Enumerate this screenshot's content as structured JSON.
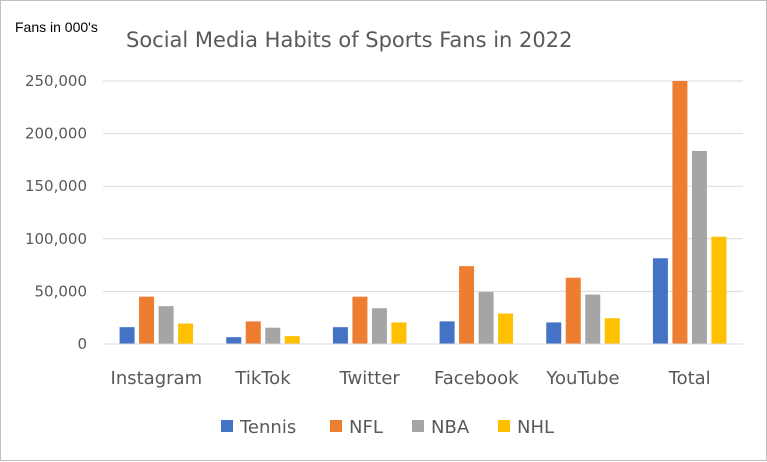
{
  "chart_data": {
    "type": "bar",
    "title": "Social Media Habits of Sports Fans in 2022",
    "ylabel": "Fans in 000's",
    "xlabel": "",
    "categories": [
      "Instagram",
      "TikTok",
      "Twitter",
      "Facebook",
      "YouTube",
      "Total"
    ],
    "series": [
      {
        "name": "Tennis",
        "color": "#4472c4",
        "values": [
          16000,
          6500,
          16000,
          21500,
          20500,
          81500
        ]
      },
      {
        "name": "NFL",
        "color": "#ed7d31",
        "values": [
          45000,
          21500,
          45000,
          74000,
          63000,
          250000
        ]
      },
      {
        "name": "NBA",
        "color": "#a5a5a5",
        "values": [
          36000,
          15500,
          34000,
          49500,
          47000,
          183500
        ]
      },
      {
        "name": "NHL",
        "color": "#ffc000",
        "values": [
          19500,
          7500,
          20500,
          29000,
          24500,
          102000
        ]
      }
    ],
    "ylim": [
      0,
      250000
    ],
    "yticks": [
      0,
      50000,
      100000,
      150000,
      200000,
      250000
    ],
    "ytick_labels": [
      "0",
      "50,000",
      "100,000",
      "150,000",
      "200,000",
      "250,000"
    ],
    "grid": true,
    "legend_position": "bottom"
  }
}
